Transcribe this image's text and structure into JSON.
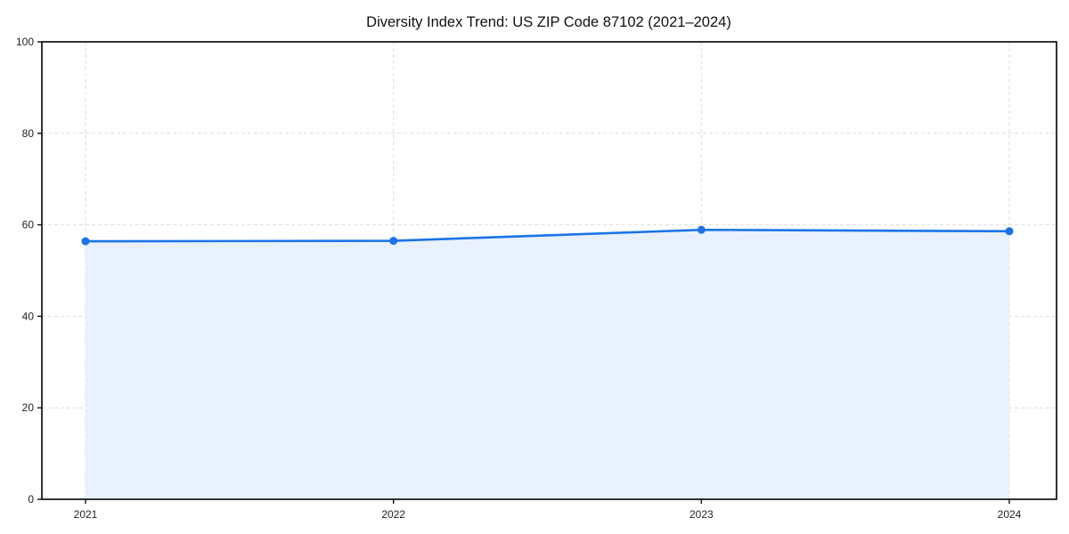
{
  "chart_data": {
    "type": "area",
    "title": "Diversity Index Trend: US ZIP Code 87102 (2021–2024)",
    "categories": [
      "2021",
      "2022",
      "2023",
      "2024"
    ],
    "series": [
      {
        "name": "Diversity Index",
        "values": [
          56.4,
          56.5,
          58.9,
          58.6
        ]
      }
    ],
    "xlabel": "",
    "ylabel": "",
    "ylim": [
      0,
      100
    ],
    "yticks": [
      0,
      20,
      40,
      60,
      80,
      100
    ],
    "grid": "dashed-both-axes",
    "legend": "none",
    "marker": "circle",
    "colors": {
      "line": "#1a73e8",
      "marker": "#1a73e8",
      "fill": "#e8f1fd",
      "grid": "#dedede",
      "axis": "#111111",
      "tick_label": "#222222",
      "title": "#111111",
      "background": "#ffffff"
    }
  }
}
